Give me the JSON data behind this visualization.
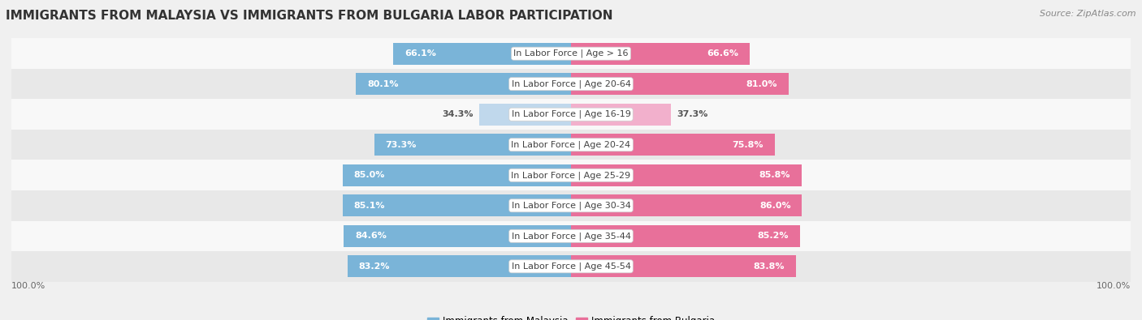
{
  "title": "IMMIGRANTS FROM MALAYSIA VS IMMIGRANTS FROM BULGARIA LABOR PARTICIPATION",
  "source": "Source: ZipAtlas.com",
  "categories": [
    "In Labor Force | Age > 16",
    "In Labor Force | Age 20-64",
    "In Labor Force | Age 16-19",
    "In Labor Force | Age 20-24",
    "In Labor Force | Age 25-29",
    "In Labor Force | Age 30-34",
    "In Labor Force | Age 35-44",
    "In Labor Force | Age 45-54"
  ],
  "malaysia_values": [
    66.1,
    80.1,
    34.3,
    73.3,
    85.0,
    85.1,
    84.6,
    83.2
  ],
  "bulgaria_values": [
    66.6,
    81.0,
    37.3,
    75.8,
    85.8,
    86.0,
    85.2,
    83.8
  ],
  "malaysia_color": "#7ab4d8",
  "malaysia_light_color": "#c0d8ec",
  "bulgaria_color": "#e8709a",
  "bulgaria_light_color": "#f2b0cc",
  "bar_height": 0.72,
  "background_color": "#f0f0f0",
  "row_bg_even": "#f8f8f8",
  "row_bg_odd": "#e8e8e8",
  "legend_malaysia": "Immigrants from Malaysia",
  "legend_bulgaria": "Immigrants from Bulgaria",
  "title_fontsize": 11,
  "label_fontsize": 8,
  "value_fontsize": 8,
  "legend_fontsize": 8.5,
  "footer_fontsize": 8
}
